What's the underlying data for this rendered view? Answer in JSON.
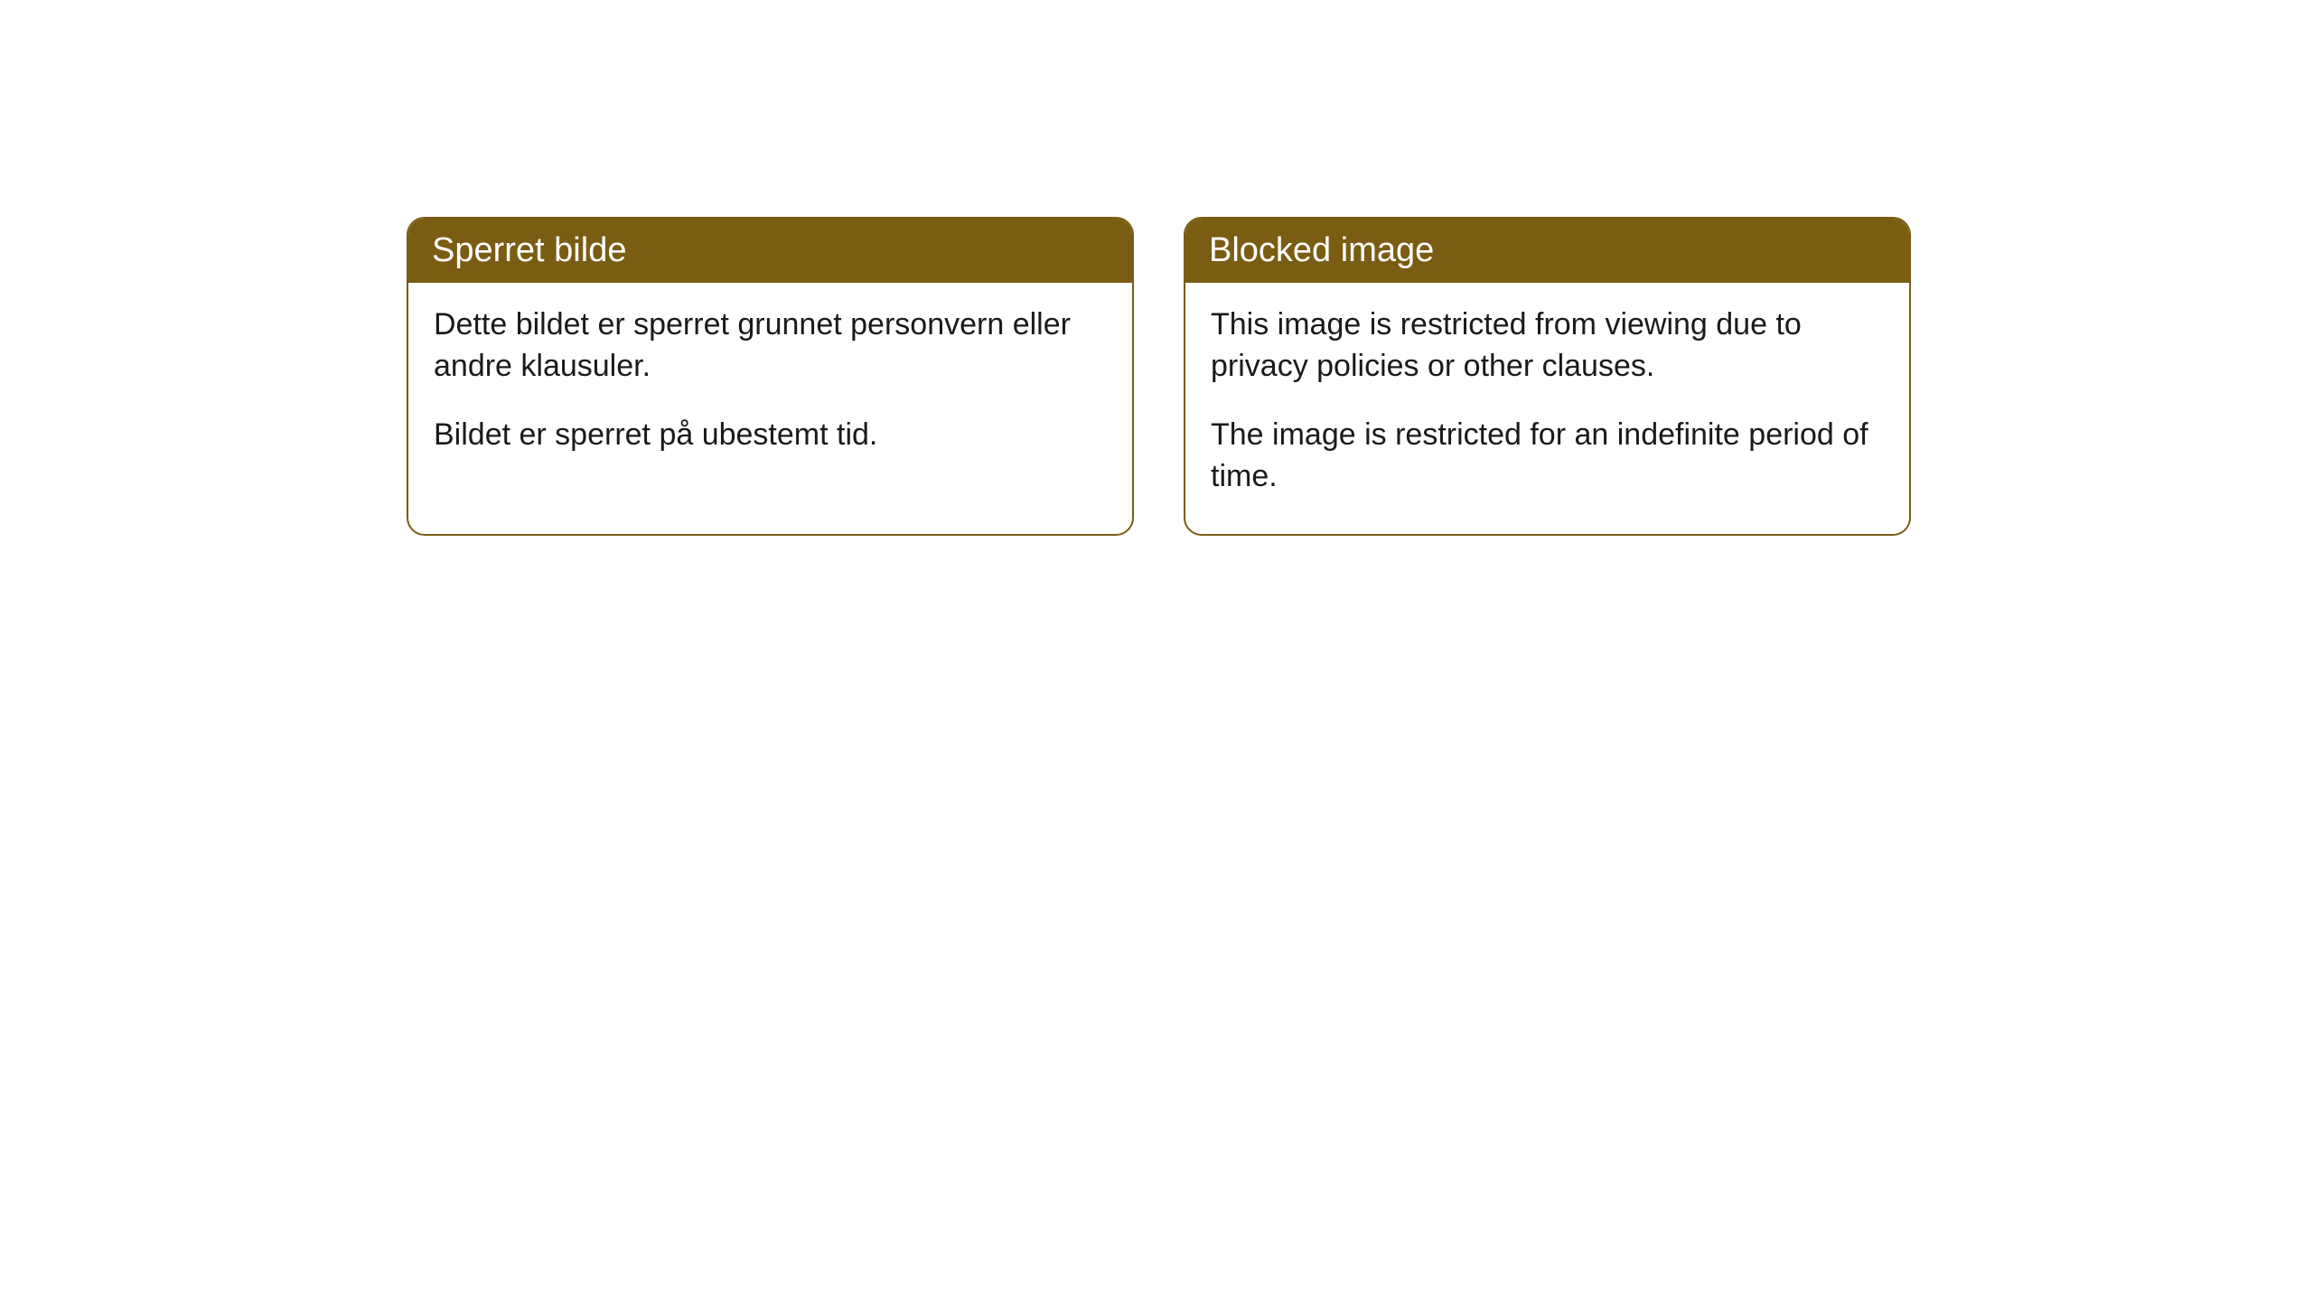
{
  "cards": [
    {
      "title": "Sperret bilde",
      "paragraph1": "Dette bildet er sperret grunnet personvern eller andre klausuler.",
      "paragraph2": "Bildet er sperret på ubestemt tid."
    },
    {
      "title": "Blocked image",
      "paragraph1": "This image is restricted from viewing due to privacy policies or other clauses.",
      "paragraph2": "The image is restricted for an indefinite period of time."
    }
  ],
  "style": {
    "header_bg": "#7a5c13",
    "header_text_color": "#ffffff",
    "border_color": "#7a5c13",
    "body_bg": "#ffffff",
    "body_text_color": "#1a1a1a",
    "border_radius": 20,
    "header_fontsize": 38,
    "body_fontsize": 34
  }
}
